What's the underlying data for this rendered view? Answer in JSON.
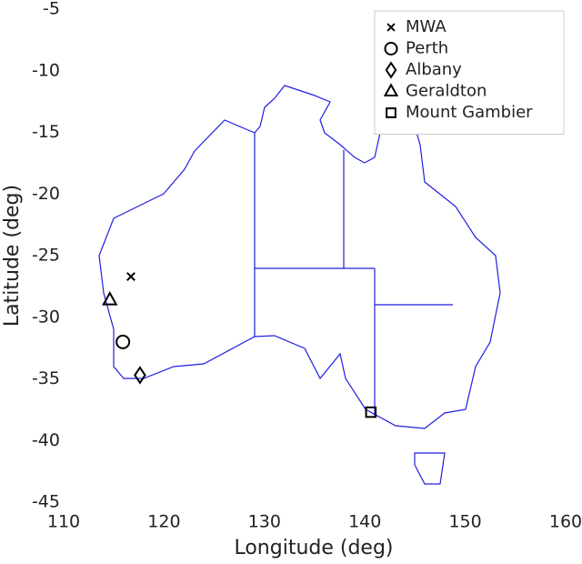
{
  "chart_data": {
    "type": "scatter",
    "xlabel": "Longitude (deg)",
    "ylabel": "Latitude (deg)",
    "xlim": [
      110,
      160
    ],
    "xticks": [
      110,
      120,
      130,
      140,
      150,
      160
    ],
    "ylim": [
      -45,
      -5
    ],
    "yticks": [
      -45,
      -40,
      -35,
      -30,
      -25,
      -20,
      -15,
      -10,
      -5
    ],
    "legend": "upper right",
    "series": [
      {
        "name": "MWA",
        "color": "#000000",
        "marker": "x",
        "x": [
          116.7
        ],
        "values": [
          -26.7
        ]
      },
      {
        "name": "Perth",
        "color": "#000000",
        "marker": "o",
        "x": [
          115.9
        ],
        "values": [
          -32.0
        ]
      },
      {
        "name": "Albany",
        "color": "#000000",
        "marker": "d",
        "x": [
          117.6
        ],
        "values": [
          -34.7
        ]
      },
      {
        "name": "Geraldton",
        "color": "#000000",
        "marker": "^",
        "x": [
          114.6
        ],
        "values": [
          -28.6
        ]
      },
      {
        "name": "Mount Gambier",
        "color": "#000000",
        "marker": "s",
        "x": [
          140.6
        ],
        "values": [
          -37.7
        ]
      }
    ]
  }
}
